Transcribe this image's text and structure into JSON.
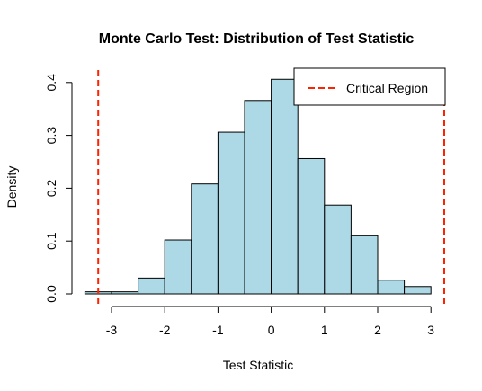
{
  "chart_data": {
    "type": "bar",
    "title": "Monte Carlo Test: Distribution of Test Statistic",
    "xlabel": "Test Statistic",
    "ylabel": "Density",
    "xlim": [
      -3.5,
      3.25
    ],
    "ylim": [
      0,
      0.4
    ],
    "x_ticks": [
      -3,
      -2,
      -1,
      0,
      1,
      2,
      3
    ],
    "y_ticks": [
      0.0,
      0.1,
      0.2,
      0.3,
      0.4
    ],
    "x_tick_labels": [
      "-3",
      "-2",
      "-1",
      "0",
      "1",
      "2",
      "3"
    ],
    "y_tick_labels": [
      "0.0",
      "0.1",
      "0.2",
      "0.3",
      "0.4"
    ],
    "bin_edges": [
      -3.5,
      -3.0,
      -2.5,
      -2.0,
      -1.5,
      -1.0,
      -0.5,
      0.0,
      0.5,
      1.0,
      1.5,
      2.0,
      2.5,
      3.0
    ],
    "densities": [
      0.004,
      0.004,
      0.03,
      0.102,
      0.208,
      0.306,
      0.366,
      0.406,
      0.256,
      0.168,
      0.11,
      0.026,
      0.014
    ],
    "bar_fill": "#add8e6",
    "bar_stroke": "#000000",
    "critical_values": [
      -3.25,
      3.25
    ],
    "critical_line_color": "#ff2200",
    "legend": {
      "position": "top-right",
      "entries": [
        {
          "label": "Critical Region",
          "color": "#ff2200",
          "style": "dashed"
        }
      ]
    }
  }
}
